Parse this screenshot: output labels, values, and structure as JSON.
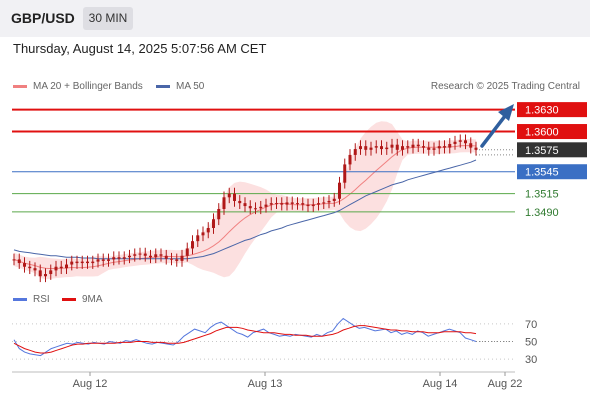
{
  "header": {
    "symbol": "GBP/USD",
    "timeframe": "30 MIN"
  },
  "datetime": "Thursday, August 14, 2025 5:07:56 AM CET",
  "legend": {
    "ma20": "MA 20 + Bollinger Bands",
    "ma50": "MA 50",
    "credit": "Research © 2025 Trading Central"
  },
  "rsi_legend": {
    "rsi": "RSI",
    "ma9": "9MA"
  },
  "colors": {
    "resistance": "#e01010",
    "support_main": "#3a6fc4",
    "support": "#5aa84a",
    "current": "#333333",
    "ma20": "#f08080",
    "bb_fill": "#fbd6d6",
    "ma50": "#4a66a8",
    "candle": "#b01818",
    "arrow": "#2f5f9e",
    "rsi": "#5577dd",
    "rsi_ma": "#e01010"
  },
  "chart_data": [
    {
      "type": "candlestick",
      "title": "GBP/USD 30 MIN",
      "ylim": [
        1.339,
        1.365
      ],
      "x_ticks": [
        "Aug 12",
        "Aug 13",
        "Aug 14",
        "Aug 22"
      ],
      "levels": [
        {
          "value": 1.363,
          "label": "1.3630",
          "kind": "resistance"
        },
        {
          "value": 1.36,
          "label": "1.3600",
          "kind": "resistance"
        },
        {
          "value": 1.3575,
          "label": "1.3575",
          "kind": "current"
        },
        {
          "value": 1.3545,
          "label": "1.3545",
          "kind": "pivot"
        },
        {
          "value": 1.3515,
          "label": "1.3515",
          "kind": "support"
        },
        {
          "value": 1.349,
          "label": "1.3490",
          "kind": "support"
        }
      ],
      "close_series": [
        1.3425,
        1.342,
        1.3415,
        1.3413,
        1.341,
        1.3402,
        1.3405,
        1.341,
        1.3415,
        1.3413,
        1.3418,
        1.3422,
        1.342,
        1.3422,
        1.342,
        1.3422,
        1.3425,
        1.3423,
        1.3425,
        1.3428,
        1.3426,
        1.3428,
        1.343,
        1.3432,
        1.3433,
        1.343,
        1.3428,
        1.3432,
        1.343,
        1.3426,
        1.3425,
        1.3423,
        1.343,
        1.344,
        1.345,
        1.3458,
        1.3462,
        1.3468,
        1.348,
        1.3494,
        1.351,
        1.3515,
        1.3505,
        1.3502,
        1.3498,
        1.3495,
        1.3495,
        1.3497,
        1.35,
        1.3502,
        1.3502,
        1.35,
        1.3503,
        1.3501,
        1.3502,
        1.35,
        1.3498,
        1.35,
        1.3502,
        1.3503,
        1.3505,
        1.3508,
        1.353,
        1.3555,
        1.3568,
        1.3576,
        1.358,
        1.3575,
        1.3578,
        1.358,
        1.3576,
        1.3578,
        1.3582,
        1.3575,
        1.358,
        1.3578,
        1.3582,
        1.358,
        1.3578,
        1.3575,
        1.3577,
        1.358,
        1.3578,
        1.3583,
        1.3586,
        1.3588,
        1.3584,
        1.3578,
        1.3575
      ],
      "ma50_series": [
        1.3438,
        1.3436,
        1.3435,
        1.3434,
        1.3433,
        1.3432,
        1.3431,
        1.343,
        1.343,
        1.3429,
        1.3428,
        1.3428,
        1.3428,
        1.3427,
        1.3427,
        1.3427,
        1.3426,
        1.3426,
        1.3426,
        1.3426,
        1.3426,
        1.3426,
        1.3426,
        1.3426,
        1.3426,
        1.3426,
        1.3426,
        1.3426,
        1.3426,
        1.3426,
        1.3426,
        1.3426,
        1.3426,
        1.3426,
        1.3427,
        1.3428,
        1.3429,
        1.3431,
        1.3433,
        1.3436,
        1.3439,
        1.3442,
        1.3445,
        1.3448,
        1.3451,
        1.3453,
        1.3456,
        1.3459,
        1.3461,
        1.3464,
        1.3466,
        1.3468,
        1.3471,
        1.3473,
        1.3475,
        1.3477,
        1.3479,
        1.3481,
        1.3483,
        1.3485,
        1.3487,
        1.3489,
        1.3492,
        1.3496,
        1.35,
        1.3504,
        1.3508,
        1.3512,
        1.3515,
        1.3518,
        1.3521,
        1.3524,
        1.3527,
        1.3529,
        1.3531,
        1.3534,
        1.3536,
        1.3538,
        1.354,
        1.3542,
        1.3544,
        1.3546,
        1.3548,
        1.355,
        1.3552,
        1.3554,
        1.3556,
        1.3558,
        1.3561
      ]
    },
    {
      "type": "line",
      "title": "RSI",
      "ylim": [
        20,
        80
      ],
      "y_ticks": [
        70,
        50,
        30
      ],
      "series": [
        {
          "name": "RSI",
          "values": [
            52,
            42,
            38,
            36,
            35,
            34,
            38,
            42,
            44,
            46,
            48,
            47,
            49,
            48,
            47,
            49,
            48,
            47,
            50,
            49,
            48,
            51,
            50,
            52,
            50,
            48,
            47,
            49,
            48,
            47,
            46,
            50,
            56,
            60,
            64,
            62,
            60,
            66,
            70,
            72,
            68,
            64,
            60,
            58,
            55,
            60,
            62,
            64,
            60,
            58,
            56,
            57,
            56,
            58,
            57,
            56,
            55,
            58,
            56,
            60,
            62,
            70,
            76,
            72,
            68,
            65,
            66,
            64,
            62,
            63,
            64,
            60,
            62,
            58,
            60,
            58,
            62,
            60,
            56,
            58,
            60,
            62,
            64,
            62,
            60,
            54,
            52,
            50
          ]
        },
        {
          "name": "9MA",
          "values": [
            48,
            45,
            42,
            40,
            38,
            37,
            37,
            38,
            40,
            42,
            44,
            46,
            47,
            47,
            48,
            48,
            48,
            48,
            48,
            48,
            49,
            49,
            49,
            50,
            50,
            50,
            49,
            49,
            49,
            48,
            48,
            48,
            49,
            51,
            53,
            55,
            57,
            59,
            62,
            64,
            66,
            66,
            66,
            65,
            63,
            62,
            61,
            60,
            60,
            60,
            59,
            58,
            58,
            57,
            57,
            57,
            56,
            56,
            56,
            57,
            58,
            60,
            63,
            65,
            67,
            68,
            68,
            67,
            66,
            65,
            64,
            63,
            63,
            62,
            62,
            61,
            61,
            61,
            60,
            60,
            60,
            61,
            61,
            61,
            61,
            60,
            60,
            59
          ]
        }
      ]
    }
  ]
}
